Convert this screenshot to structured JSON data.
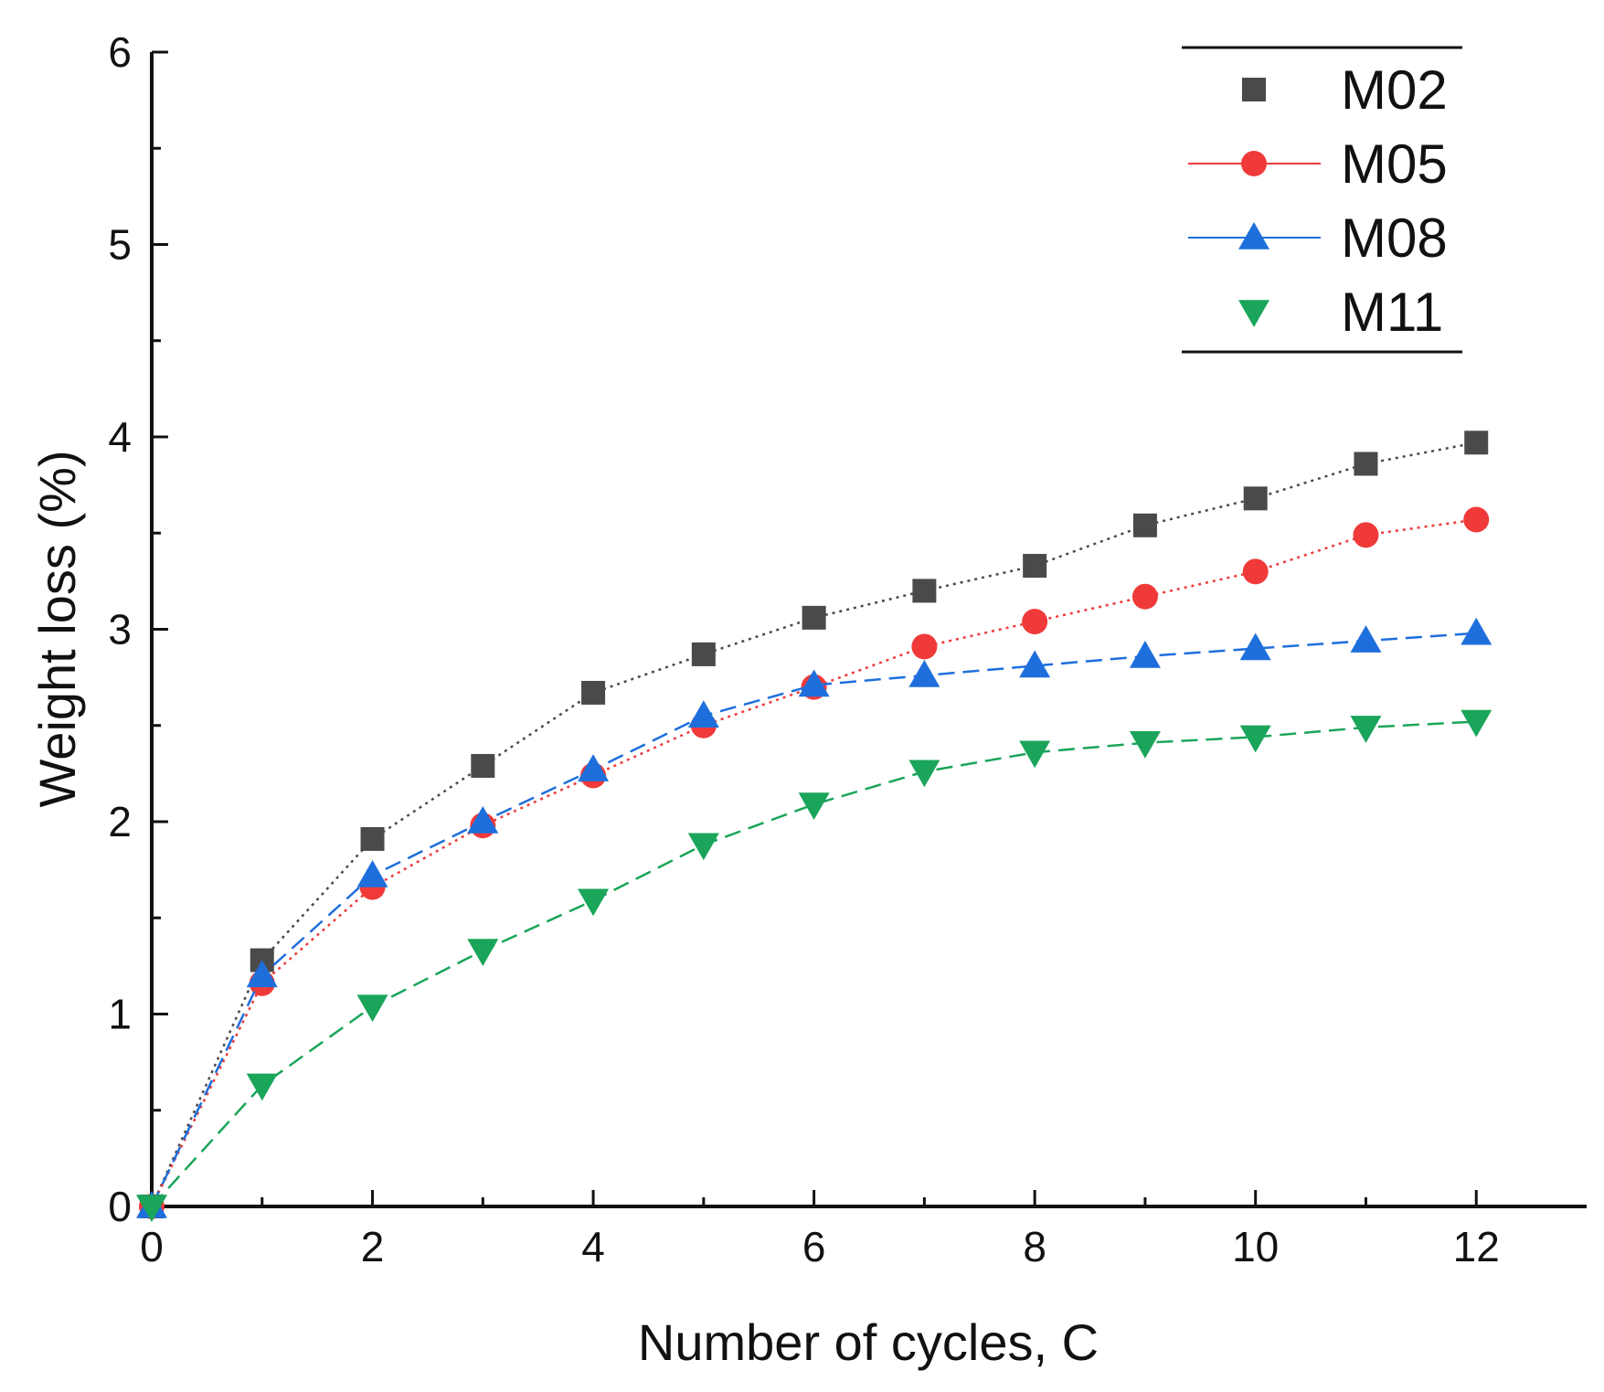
{
  "chart_data": {
    "type": "line",
    "title": "",
    "xlabel": "Number of cycles, C",
    "ylabel": "Weight loss (%)",
    "xlim": [
      0,
      13
    ],
    "ylim": [
      0,
      6
    ],
    "xticks": [
      0,
      2,
      4,
      6,
      8,
      10,
      12
    ],
    "xtick_labels": [
      "0",
      "2",
      "4",
      "6",
      "8",
      "10",
      "12"
    ],
    "yticks": [
      0,
      1,
      2,
      3,
      4,
      5,
      6
    ],
    "ytick_labels": [
      "0",
      "1",
      "2",
      "3",
      "4",
      "5",
      "6"
    ],
    "grid": false,
    "legend_position": "top-right",
    "x": [
      0,
      1,
      2,
      3,
      4,
      5,
      6,
      7,
      8,
      9,
      10,
      11,
      12
    ],
    "series": [
      {
        "name": "M02",
        "color": "#4a4a4a",
        "marker": "square",
        "line_style": "dotted",
        "values": [
          0,
          1.28,
          1.91,
          2.29,
          2.67,
          2.87,
          3.06,
          3.2,
          3.33,
          3.54,
          3.68,
          3.86,
          3.97
        ]
      },
      {
        "name": "M05",
        "color": "#f03a3a",
        "marker": "circle",
        "line_style": "dotted",
        "values": [
          0,
          1.16,
          1.66,
          1.98,
          2.24,
          2.5,
          2.7,
          2.91,
          3.04,
          3.17,
          3.3,
          3.49,
          3.57
        ]
      },
      {
        "name": "M08",
        "color": "#1e6fdc",
        "marker": "triangle-up",
        "line_style": "dashed",
        "values": [
          0,
          1.2,
          1.72,
          2.0,
          2.27,
          2.55,
          2.71,
          2.76,
          2.81,
          2.86,
          2.9,
          2.94,
          2.98
        ]
      },
      {
        "name": "M11",
        "color": "#1aa55a",
        "marker": "triangle-down",
        "line_style": "dashed",
        "values": [
          0,
          0.63,
          1.04,
          1.33,
          1.59,
          1.88,
          2.09,
          2.26,
          2.36,
          2.41,
          2.44,
          2.49,
          2.52
        ]
      }
    ]
  }
}
